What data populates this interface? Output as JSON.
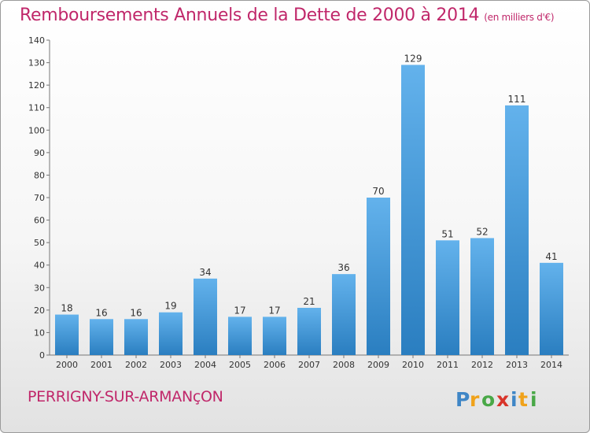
{
  "header": {
    "title": "Remboursements Annuels de la Dette de 2000 à 2014",
    "unit": "(en milliers d'€)"
  },
  "footer": {
    "commune": "PERRIGNY-SUR-ARMANçON",
    "logo_text": "Proxiti"
  },
  "colors": {
    "title": "#c0276a",
    "bar_top": "#63b2ec",
    "bar_bottom": "#2a7ec0"
  },
  "chart_data": {
    "type": "bar",
    "title": "Remboursements Annuels de la Dette de 2000 à 2014",
    "categories": [
      "2000",
      "2001",
      "2002",
      "2003",
      "2004",
      "2005",
      "2006",
      "2007",
      "2008",
      "2009",
      "2010",
      "2011",
      "2012",
      "2013",
      "2014"
    ],
    "values": [
      18,
      16,
      16,
      19,
      34,
      17,
      17,
      21,
      36,
      70,
      129,
      51,
      52,
      111,
      41
    ],
    "ylim": [
      0,
      140
    ],
    "yticks": [
      0,
      10,
      20,
      30,
      40,
      50,
      60,
      70,
      80,
      90,
      100,
      110,
      120,
      130,
      140
    ],
    "grid": false,
    "data_labels": true
  }
}
